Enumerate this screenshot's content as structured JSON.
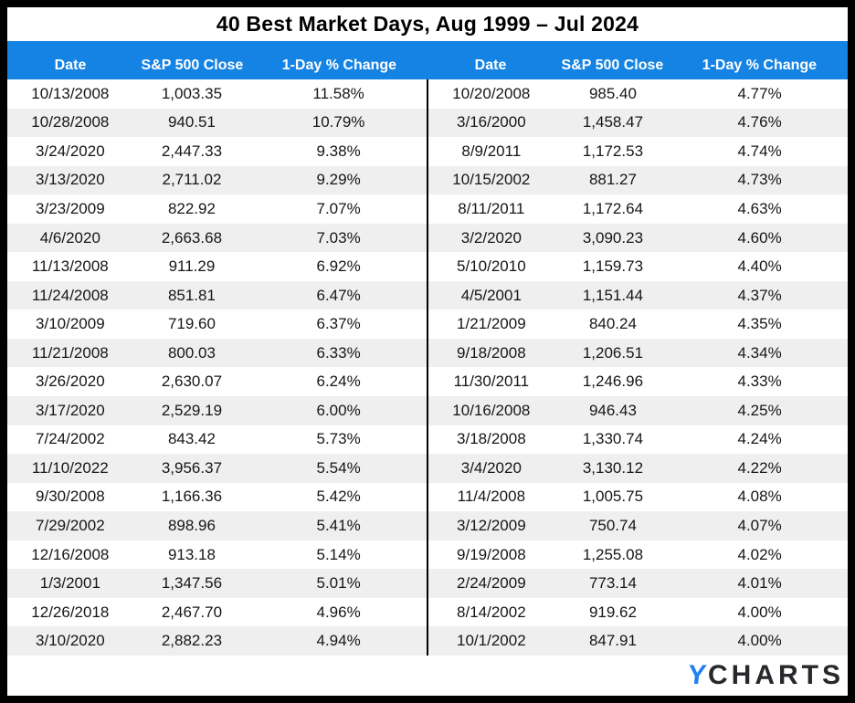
{
  "title": "40 Best Market Days, Aug 1999 – Jul 2024",
  "colors": {
    "header_blue": "#1583E3",
    "stripe_gray": "#EFEFF0",
    "border_black": "#000000",
    "logo_blue": "#1F80EF",
    "logo_dark": "#26282B"
  },
  "footer": {
    "logo_y": "Y",
    "logo_text": "CHARTS"
  },
  "chart_data": {
    "type": "table",
    "title": "40 Best Market Days, Aug 1999 – Jul 2024",
    "columns": [
      "Date",
      "S&P 500 Close",
      "1-Day % Change"
    ],
    "layout": "two side-by-side 20-row tables, ranks 1-20 left and 21-40 right, alternating white/gray row stripes, blue header band",
    "rows": [
      [
        "10/13/2008",
        "1,003.35",
        "11.58%"
      ],
      [
        "10/28/2008",
        "940.51",
        "10.79%"
      ],
      [
        "3/24/2020",
        "2,447.33",
        "9.38%"
      ],
      [
        "3/13/2020",
        "2,711.02",
        "9.29%"
      ],
      [
        "3/23/2009",
        "822.92",
        "7.07%"
      ],
      [
        "4/6/2020",
        "2,663.68",
        "7.03%"
      ],
      [
        "11/13/2008",
        "911.29",
        "6.92%"
      ],
      [
        "11/24/2008",
        "851.81",
        "6.47%"
      ],
      [
        "3/10/2009",
        "719.60",
        "6.37%"
      ],
      [
        "11/21/2008",
        "800.03",
        "6.33%"
      ],
      [
        "3/26/2020",
        "2,630.07",
        "6.24%"
      ],
      [
        "3/17/2020",
        "2,529.19",
        "6.00%"
      ],
      [
        "7/24/2002",
        "843.42",
        "5.73%"
      ],
      [
        "11/10/2022",
        "3,956.37",
        "5.54%"
      ],
      [
        "9/30/2008",
        "1,166.36",
        "5.42%"
      ],
      [
        "7/29/2002",
        "898.96",
        "5.41%"
      ],
      [
        "12/16/2008",
        "913.18",
        "5.14%"
      ],
      [
        "1/3/2001",
        "1,347.56",
        "5.01%"
      ],
      [
        "12/26/2018",
        "2,467.70",
        "4.96%"
      ],
      [
        "3/10/2020",
        "2,882.23",
        "4.94%"
      ],
      [
        "10/20/2008",
        "985.40",
        "4.77%"
      ],
      [
        "3/16/2000",
        "1,458.47",
        "4.76%"
      ],
      [
        "8/9/2011",
        "1,172.53",
        "4.74%"
      ],
      [
        "10/15/2002",
        "881.27",
        "4.73%"
      ],
      [
        "8/11/2011",
        "1,172.64",
        "4.63%"
      ],
      [
        "3/2/2020",
        "3,090.23",
        "4.60%"
      ],
      [
        "5/10/2010",
        "1,159.73",
        "4.40%"
      ],
      [
        "4/5/2001",
        "1,151.44",
        "4.37%"
      ],
      [
        "1/21/2009",
        "840.24",
        "4.35%"
      ],
      [
        "9/18/2008",
        "1,206.51",
        "4.34%"
      ],
      [
        "11/30/2011",
        "1,246.96",
        "4.33%"
      ],
      [
        "10/16/2008",
        "946.43",
        "4.25%"
      ],
      [
        "3/18/2008",
        "1,330.74",
        "4.24%"
      ],
      [
        "3/4/2020",
        "3,130.12",
        "4.22%"
      ],
      [
        "11/4/2008",
        "1,005.75",
        "4.08%"
      ],
      [
        "3/12/2009",
        "750.74",
        "4.07%"
      ],
      [
        "9/19/2008",
        "1,255.08",
        "4.02%"
      ],
      [
        "2/24/2009",
        "773.14",
        "4.01%"
      ],
      [
        "8/14/2002",
        "919.62",
        "4.00%"
      ],
      [
        "10/1/2002",
        "847.91",
        "4.00%"
      ]
    ]
  }
}
